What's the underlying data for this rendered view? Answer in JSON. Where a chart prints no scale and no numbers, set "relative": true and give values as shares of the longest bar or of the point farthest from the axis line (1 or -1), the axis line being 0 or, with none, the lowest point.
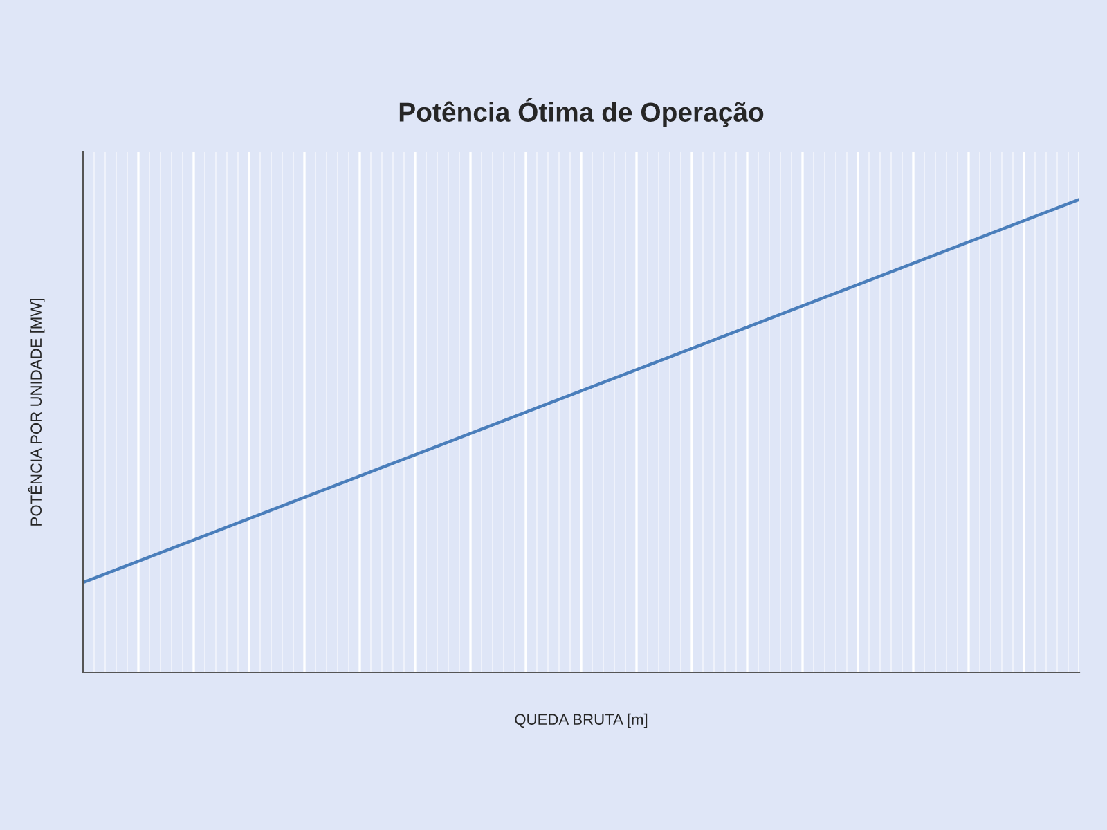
{
  "chart_data": {
    "type": "line",
    "title": "Potência Ótima de Operação",
    "xlabel": "QUEDA BRUTA [m]",
    "ylabel": "POTÊNCIA POR UNIDADE [MW]",
    "relative": true,
    "categories": [
      null,
      null
    ],
    "series": [
      {
        "color": "#4a7ebb",
        "values": [
          0.19,
          1.0
        ]
      }
    ],
    "grid": "x",
    "legend": false,
    "marker": "none",
    "line_style": "solid"
  }
}
